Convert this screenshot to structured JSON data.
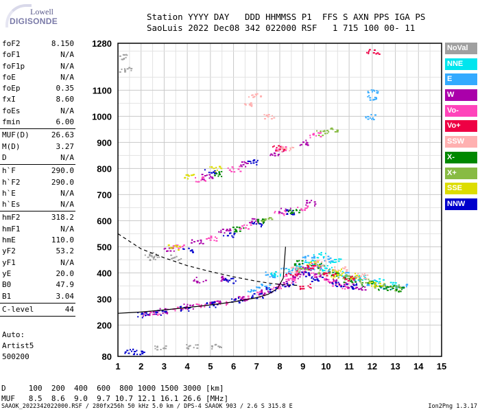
{
  "logo": {
    "line1": "Lowell",
    "line2": "DIGISONDE"
  },
  "header": {
    "row1": "Station YYYY DAY   DDD HHMMSS P1  FFS S AXN PPS IGA PS",
    "row2": "SaoLuis 2022 Dec08 342 022000 RSF   1 715 100 00- 11"
  },
  "params": {
    "g1": [
      {
        "name": "foF2",
        "value": "8.150"
      },
      {
        "name": "foF1",
        "value": "N/A"
      },
      {
        "name": "foF1p",
        "value": "N/A"
      },
      {
        "name": "foE",
        "value": "N/A"
      },
      {
        "name": "foEp",
        "value": "0.35"
      },
      {
        "name": "fxI",
        "value": "8.60"
      },
      {
        "name": "foEs",
        "value": "N/A"
      },
      {
        "name": "fmin",
        "value": "6.00"
      }
    ],
    "g2": [
      {
        "name": "MUF(D)",
        "value": "26.63"
      },
      {
        "name": "M(D)",
        "value": "3.27"
      },
      {
        "name": "D",
        "value": "N/A"
      }
    ],
    "g3": [
      {
        "name": "h`F",
        "value": "290.0"
      },
      {
        "name": "h`F2",
        "value": "290.0"
      },
      {
        "name": "h`E",
        "value": "N/A"
      },
      {
        "name": "h`Es",
        "value": "N/A"
      }
    ],
    "g4": [
      {
        "name": "hmF2",
        "value": "318.2"
      },
      {
        "name": "hmF1",
        "value": "N/A"
      },
      {
        "name": "hmE",
        "value": "110.0"
      },
      {
        "name": "yF2",
        "value": "53.2"
      },
      {
        "name": "yF1",
        "value": "N/A"
      },
      {
        "name": "yE",
        "value": "20.0"
      },
      {
        "name": "B0",
        "value": "47.9"
      },
      {
        "name": "B1",
        "value": "3.04"
      }
    ],
    "g5": [
      {
        "name": "C-level",
        "value": "44"
      }
    ]
  },
  "auto": {
    "line1": "Auto:",
    "line2": "Artist5",
    "line3": "500200"
  },
  "legend": [
    {
      "label": "NoVal",
      "color": "#a0a0a0"
    },
    {
      "label": "NNE",
      "color": "#00e5ee"
    },
    {
      "label": "E",
      "color": "#33aaff"
    },
    {
      "label": "W",
      "color": "#aa00aa"
    },
    {
      "label": "Vo-",
      "color": "#ff44bb"
    },
    {
      "label": "Vo+",
      "color": "#ee0044"
    },
    {
      "label": "SSW",
      "color": "#ffb0b0"
    },
    {
      "label": "X-",
      "color": "#008800"
    },
    {
      "label": "X+",
      "color": "#88bb44"
    },
    {
      "label": "SSE",
      "color": "#dddd00"
    },
    {
      "label": "NNW",
      "color": "#0000cc"
    }
  ],
  "dtable": {
    "row1": "D     100  200  400  600  800 1000 1500 3000 [km]",
    "row2": "MUF   8.5  8.6  9.0  9.7 10.7 12.1 16.1 26.6 [MHz]"
  },
  "footer": "SAAOK_2022342022000.RSF / 280fx256h 50 kHz 5.0 km / DPS-4 SAAOK 903 / 2.6 S 315.8 E",
  "version": "Ion2Png 1.3.17",
  "chart_data": {
    "type": "scatter",
    "x_ticks": [
      1,
      2,
      3,
      4,
      5,
      6,
      7,
      8,
      9,
      10,
      11,
      12,
      13,
      14,
      15
    ],
    "y_ticks": [
      80,
      200,
      300,
      400,
      500,
      600,
      700,
      800,
      900,
      1000,
      1100,
      1280
    ],
    "xlim": [
      1,
      15
    ],
    "ylim": [
      80,
      1280
    ],
    "grid": true,
    "legend_position": "right",
    "clusters": [
      {
        "name": "Vo-",
        "color": "#ff44bb",
        "points": [
          [
            2.5,
            248
          ],
          [
            3.5,
            262
          ],
          [
            4.5,
            275
          ],
          [
            5.5,
            290
          ],
          [
            6.5,
            305
          ],
          [
            7.2,
            320
          ],
          [
            7.8,
            345
          ],
          [
            8.4,
            372
          ],
          [
            8.8,
            410
          ],
          [
            9.2,
            400
          ],
          [
            9.8,
            380
          ],
          [
            10.3,
            360
          ],
          [
            10.8,
            350
          ],
          [
            3.6,
            500
          ],
          [
            5,
            535
          ],
          [
            6.5,
            580
          ],
          [
            8,
            630
          ],
          [
            9,
            650
          ],
          [
            4.5,
            760
          ],
          [
            6,
            800
          ],
          [
            8,
            880
          ],
          [
            9.5,
            930
          ],
          [
            8.4,
            380
          ],
          [
            9.5,
            430
          ]
        ]
      },
      {
        "name": "W",
        "color": "#aa00aa",
        "points": [
          [
            2.3,
            245
          ],
          [
            3,
            255
          ],
          [
            4.1,
            272
          ],
          [
            5.2,
            288
          ],
          [
            6.3,
            305
          ],
          [
            7.4,
            330
          ],
          [
            8.1,
            360
          ],
          [
            8.6,
            390
          ],
          [
            9.1,
            420
          ],
          [
            9.7,
            395
          ],
          [
            10.2,
            372
          ],
          [
            10.9,
            355
          ],
          [
            11.5,
            345
          ],
          [
            3.2,
            495
          ],
          [
            4.4,
            520
          ],
          [
            5.6,
            560
          ],
          [
            6.8,
            600
          ],
          [
            8.2,
            640
          ],
          [
            9.3,
            670
          ],
          [
            4.8,
            770
          ],
          [
            6.5,
            820
          ],
          [
            7.8,
            860
          ],
          [
            9,
            900
          ],
          [
            4.5,
            375
          ],
          [
            5.5,
            380
          ]
        ]
      },
      {
        "name": "NNW",
        "color": "#0000cc",
        "points": [
          [
            2.1,
            240
          ],
          [
            2.8,
            250
          ],
          [
            3.9,
            265
          ],
          [
            5,
            280
          ],
          [
            6.1,
            298
          ],
          [
            7,
            315
          ],
          [
            7.6,
            335
          ],
          [
            8.3,
            360
          ],
          [
            9,
            395
          ],
          [
            9.6,
            380
          ],
          [
            10.5,
            360
          ],
          [
            11.1,
            350
          ],
          [
            4,
            490
          ],
          [
            5.8,
            545
          ],
          [
            7,
            590
          ],
          [
            8.5,
            635
          ],
          [
            5,
            790
          ],
          [
            6.8,
            825
          ],
          [
            1.5,
            100
          ],
          [
            1.9,
            100
          ],
          [
            5.8,
            372
          ]
        ]
      },
      {
        "name": "E",
        "color": "#33aaff",
        "points": [
          [
            7.6,
            395
          ],
          [
            8.3,
            410
          ],
          [
            8.9,
            430
          ],
          [
            9.5,
            425
          ],
          [
            10.1,
            410
          ],
          [
            10.7,
            395
          ],
          [
            11.3,
            380
          ],
          [
            12,
            365
          ],
          [
            12.6,
            350
          ],
          [
            13.2,
            350
          ],
          [
            9.2,
            460
          ],
          [
            10,
            455
          ],
          [
            6.8,
            340
          ],
          [
            7.3,
            350
          ],
          [
            12,
            1100
          ],
          [
            11.9,
            1075
          ],
          [
            11.9,
            1000
          ]
        ]
      },
      {
        "name": "NNE",
        "color": "#00e5ee",
        "points": [
          [
            8.6,
            420
          ],
          [
            9.3,
            440
          ],
          [
            10,
            420
          ],
          [
            10.6,
            400
          ],
          [
            11.4,
            385
          ],
          [
            12.2,
            370
          ],
          [
            12.9,
            358
          ],
          [
            9.7,
            470
          ],
          [
            10.4,
            445
          ],
          [
            7.8,
            400
          ]
        ]
      },
      {
        "name": "X-",
        "color": "#008800",
        "points": [
          [
            8.8,
            440
          ],
          [
            9.6,
            430
          ],
          [
            10.3,
            400
          ],
          [
            11,
            375
          ],
          [
            11.8,
            360
          ],
          [
            12.5,
            345
          ],
          [
            13.1,
            340
          ],
          [
            6.2,
            570
          ],
          [
            7.2,
            600
          ],
          [
            5.4,
            780
          ],
          [
            8.6,
            640
          ],
          [
            12.8,
            345
          ]
        ]
      },
      {
        "name": "X+",
        "color": "#88bb44",
        "points": [
          [
            9,
            415
          ],
          [
            9.9,
            405
          ],
          [
            10.8,
            385
          ],
          [
            11.6,
            370
          ],
          [
            12.3,
            355
          ],
          [
            13,
            345
          ],
          [
            10.2,
            950
          ],
          [
            9.8,
            940
          ],
          [
            7.4,
            610
          ]
        ]
      },
      {
        "name": "SSE",
        "color": "#dddd00",
        "points": [
          [
            9.4,
            435
          ],
          [
            10.5,
            410
          ],
          [
            11.2,
            390
          ],
          [
            12.1,
            360
          ],
          [
            4,
            770
          ],
          [
            5.2,
            800
          ],
          [
            3.4,
            500
          ],
          [
            10.4,
            390
          ]
        ]
      },
      {
        "name": "SSW",
        "color": "#ffb0b0",
        "points": [
          [
            8.1,
            880
          ],
          [
            8.3,
            875
          ],
          [
            8.7,
            415
          ],
          [
            9.7,
            440
          ],
          [
            10.6,
            415
          ],
          [
            11.5,
            390
          ],
          [
            6.6,
            1050
          ],
          [
            6.9,
            1080
          ],
          [
            7.5,
            1000
          ]
        ]
      },
      {
        "name": "Vo+",
        "color": "#ee0044",
        "points": [
          [
            8.5,
            400
          ],
          [
            9.3,
            420
          ],
          [
            10.1,
            395
          ],
          [
            11,
            380
          ],
          [
            12,
            1250
          ],
          [
            9.1,
            350
          ],
          [
            7.9,
            880
          ]
        ]
      },
      {
        "name": "NoVal",
        "color": "#a0a0a0",
        "points": [
          [
            3.5,
            460
          ],
          [
            2.6,
            470
          ],
          [
            2.4,
            460
          ],
          [
            4.2,
            120
          ],
          [
            5.2,
            118
          ],
          [
            2.8,
            118
          ],
          [
            1.3,
            1230
          ],
          [
            1.3,
            1180
          ]
        ]
      }
    ],
    "lines": [
      {
        "name": "profile",
        "style": "solid",
        "points": [
          [
            1,
            245
          ],
          [
            2,
            250
          ],
          [
            3,
            258
          ],
          [
            4,
            267
          ],
          [
            5,
            277
          ],
          [
            6,
            289
          ],
          [
            7,
            305
          ],
          [
            7.5,
            318
          ],
          [
            7.9,
            340
          ],
          [
            8.15,
            380
          ],
          [
            8.25,
            500
          ]
        ]
      },
      {
        "name": "MUF",
        "style": "dashed",
        "points": [
          [
            1,
            550
          ],
          [
            2,
            492
          ],
          [
            3,
            458
          ],
          [
            4,
            428
          ],
          [
            5,
            405
          ],
          [
            6,
            385
          ],
          [
            7,
            368
          ],
          [
            7.6,
            360
          ],
          [
            8.1,
            355
          ],
          [
            8.8,
            352
          ]
        ]
      }
    ]
  }
}
